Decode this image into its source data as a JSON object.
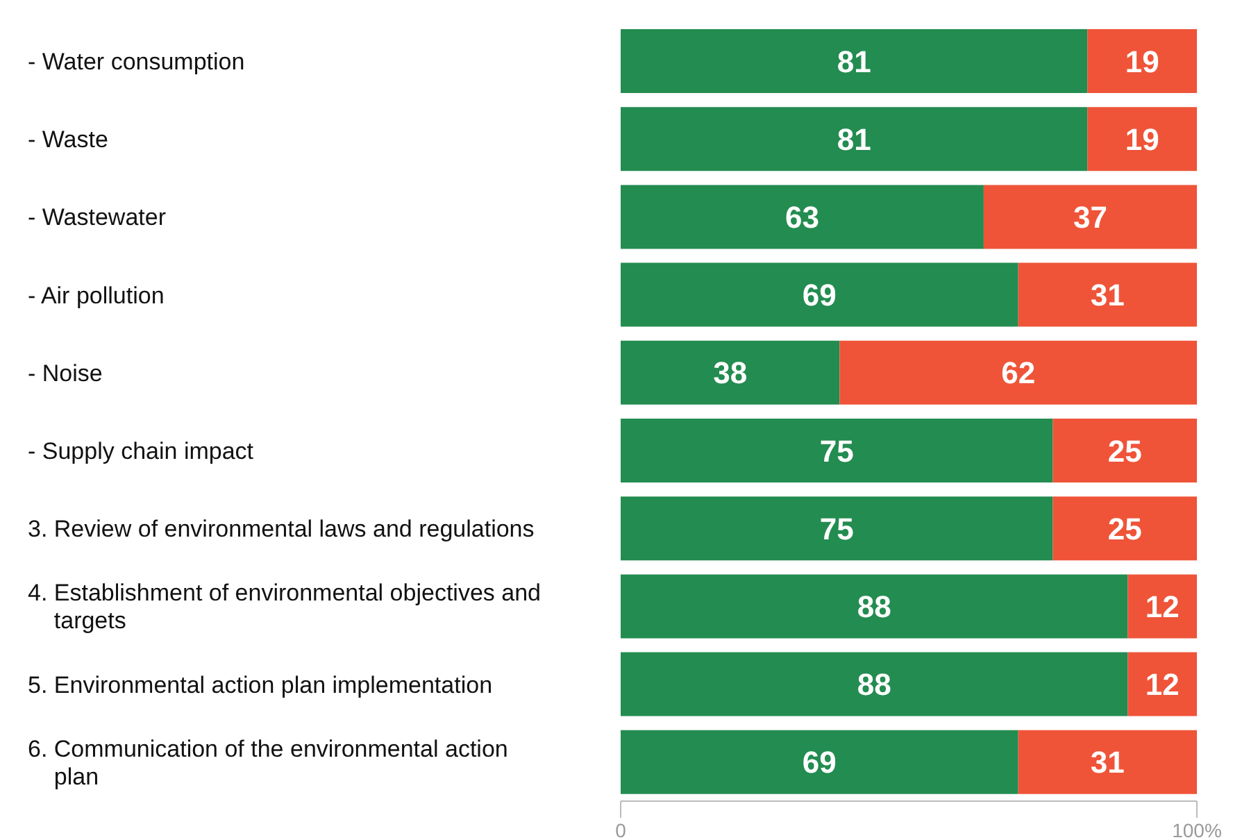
{
  "chart_data": {
    "type": "bar",
    "orientation": "horizontal",
    "stacked": true,
    "data_labels": true,
    "categories": [
      "- Water consumption",
      "- Waste",
      "- Wastewater",
      "- Air pollution",
      "- Noise",
      "- Supply chain impact",
      "3. Review of environmental laws and regulations",
      "4. Establishment of environmental objectives and targets",
      "5. Environmental action plan implementation",
      "6. Communication of the environmental action plan"
    ],
    "series": [
      {
        "color": "#238c50",
        "values": [
          81,
          81,
          63,
          69,
          38,
          75,
          75,
          88,
          88,
          69
        ]
      },
      {
        "color": "#ef5438",
        "values": [
          19,
          19,
          37,
          31,
          62,
          25,
          25,
          12,
          12,
          31
        ]
      }
    ],
    "xlim": [
      0,
      100
    ],
    "xticks": [
      0,
      {
        "value": 100,
        "label": "100%"
      }
    ]
  }
}
